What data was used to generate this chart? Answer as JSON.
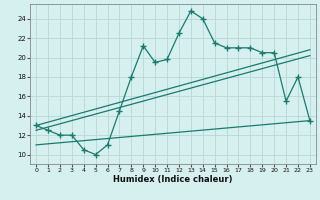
{
  "xlabel": "Humidex (Indice chaleur)",
  "bg_color": "#d6f0ef",
  "grid_color": "#b8d8d4",
  "line_color": "#1a7a6e",
  "xlim": [
    -0.5,
    23.5
  ],
  "ylim": [
    9.0,
    25.5
  ],
  "xticks": [
    0,
    1,
    2,
    3,
    4,
    5,
    6,
    7,
    8,
    9,
    10,
    11,
    12,
    13,
    14,
    15,
    16,
    17,
    18,
    19,
    20,
    21,
    22,
    23
  ],
  "yticks": [
    10,
    12,
    14,
    16,
    18,
    20,
    22,
    24
  ],
  "main_x": [
    0,
    1,
    2,
    3,
    4,
    5,
    6,
    7,
    8,
    9,
    10,
    11,
    12,
    13,
    14,
    15,
    16,
    17,
    18,
    19,
    20,
    21,
    22,
    23
  ],
  "main_y": [
    13.0,
    12.5,
    12.0,
    12.0,
    10.5,
    10.0,
    11.0,
    14.5,
    18.0,
    21.2,
    19.5,
    19.8,
    22.5,
    24.8,
    24.0,
    21.5,
    21.0,
    21.0,
    21.0,
    20.5,
    20.5,
    15.5,
    18.0,
    13.5
  ],
  "trend1_x": [
    0,
    23
  ],
  "trend1_y": [
    13.0,
    20.8
  ],
  "trend2_x": [
    0,
    23
  ],
  "trend2_y": [
    12.5,
    20.2
  ],
  "trend3_x": [
    0,
    23
  ],
  "trend3_y": [
    11.0,
    13.5
  ]
}
